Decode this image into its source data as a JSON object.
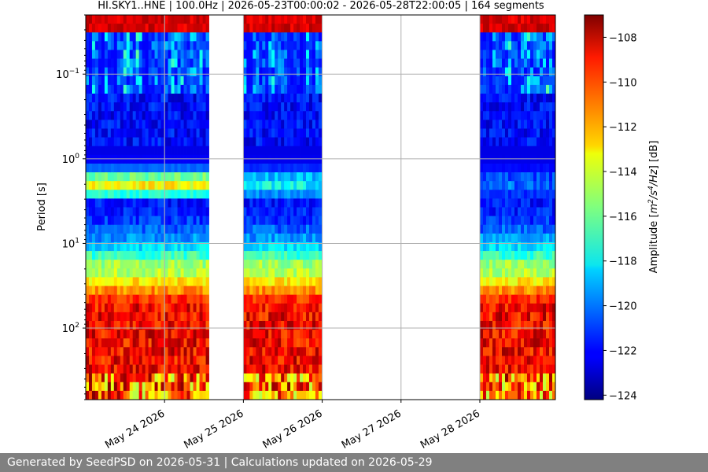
{
  "chart_data": {
    "type": "heatmap",
    "title": "HI.SKY1..HNE | 100.0Hz | 2026-05-23T00:00:02 - 2026-05-28T22:00:05 | 164 segments",
    "ylabel": "Period [s]",
    "y_scale": "log",
    "y_inverted": true,
    "y_range": [
      0.02,
      700
    ],
    "x_range": [
      "2026-05-23",
      "2026-05-28T23:00"
    ],
    "y_ticks": [
      {
        "value": 0.1,
        "base": "10",
        "exp": "−1"
      },
      {
        "value": 1,
        "base": "10",
        "exp": "0"
      },
      {
        "value": 10,
        "base": "10",
        "exp": "1"
      },
      {
        "value": 100,
        "base": "10",
        "exp": "2"
      }
    ],
    "x_ticks": [
      {
        "date": "2026-05-24",
        "label": "May 24 2026"
      },
      {
        "date": "2026-05-25",
        "label": "May 25 2026"
      },
      {
        "date": "2026-05-26",
        "label": "May 26 2026"
      },
      {
        "date": "2026-05-27",
        "label": "May 27 2026"
      },
      {
        "date": "2026-05-28",
        "label": "May 28 2026"
      }
    ],
    "data_segments": [
      {
        "start": "2026-05-23T00:00",
        "end": "2026-05-23T23:50"
      },
      {
        "start": "2026-05-24T00:05",
        "end": "2026-05-24T13:30"
      },
      {
        "start": "2026-05-25T00:00",
        "end": "2026-05-25T23:50"
      },
      {
        "start": "2026-05-28T00:00",
        "end": "2026-05-28T23:00"
      }
    ],
    "colorbar": {
      "label_text": "Amplitude [m²/s⁴/Hz] [dB]",
      "min": -124.2,
      "max": -107,
      "ticks": [
        "-108",
        "-110",
        "-112",
        "-114",
        "-116",
        "-118",
        "-120",
        "-122",
        "-124"
      ],
      "colormap": "jet"
    },
    "grid": true
  },
  "footer": {
    "text": "Generated by SeedPSD on 2026-05-31 | Calculations updated on 2026-05-29"
  }
}
